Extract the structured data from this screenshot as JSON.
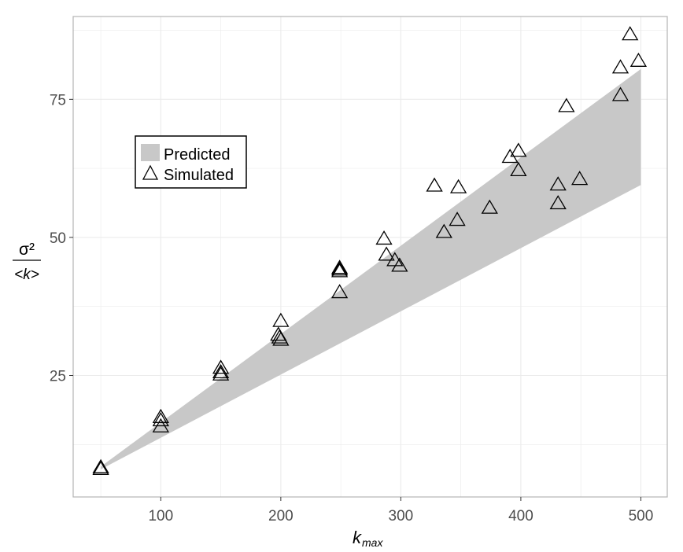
{
  "chart_data": {
    "type": "scatter",
    "xlabel": "k",
    "xlabel_sub": "max",
    "ylabel_numerator": "σ²",
    "ylabel_denominator": "<k>",
    "xlim": [
      27,
      522
    ],
    "ylim": [
      3,
      90
    ],
    "x_ticks": [
      100,
      200,
      300,
      400,
      500
    ],
    "x_tick_labels": [
      "100",
      "200",
      "300",
      "400",
      "500"
    ],
    "y_ticks": [
      25,
      50,
      75
    ],
    "y_tick_labels": [
      "25",
      "50",
      "75"
    ],
    "grid": true,
    "legend_position": "upper-left",
    "colors": {
      "band": "#c8c8c8",
      "marker_stroke": "#000000",
      "grid": "#ebebeb",
      "panel_border": "#b3b3b3"
    },
    "series": [
      {
        "name": "Predicted",
        "kind": "band",
        "x": [
          50,
          500
        ],
        "lower": [
          8,
          59.5
        ],
        "upper": [
          8.5,
          80.5
        ]
      },
      {
        "name": "Simulated",
        "kind": "points",
        "marker": "triangle-open",
        "points": [
          [
            50,
            8.4
          ],
          [
            50,
            8.1
          ],
          [
            100,
            17.5
          ],
          [
            100,
            16.9
          ],
          [
            100,
            15.8
          ],
          [
            150,
            26.4
          ],
          [
            150,
            25.6
          ],
          [
            150,
            25.2
          ],
          [
            200,
            34.9
          ],
          [
            198,
            32.4
          ],
          [
            199,
            31.9
          ],
          [
            200,
            31.5
          ],
          [
            249,
            44.5
          ],
          [
            249,
            44.2
          ],
          [
            249,
            43.9
          ],
          [
            249,
            40.1
          ],
          [
            286,
            49.8
          ],
          [
            288,
            46.9
          ],
          [
            295,
            45.9
          ],
          [
            299,
            44.9
          ],
          [
            328,
            59.4
          ],
          [
            336,
            51.0
          ],
          [
            347,
            53.2
          ],
          [
            348,
            59.1
          ],
          [
            374,
            55.4
          ],
          [
            391,
            64.6
          ],
          [
            398,
            65.7
          ],
          [
            398,
            62.2
          ],
          [
            431,
            59.6
          ],
          [
            431,
            56.2
          ],
          [
            438,
            73.8
          ],
          [
            449,
            60.6
          ],
          [
            483,
            80.8
          ],
          [
            483,
            75.8
          ],
          [
            491,
            86.8
          ],
          [
            498,
            82.0
          ]
        ]
      }
    ]
  }
}
